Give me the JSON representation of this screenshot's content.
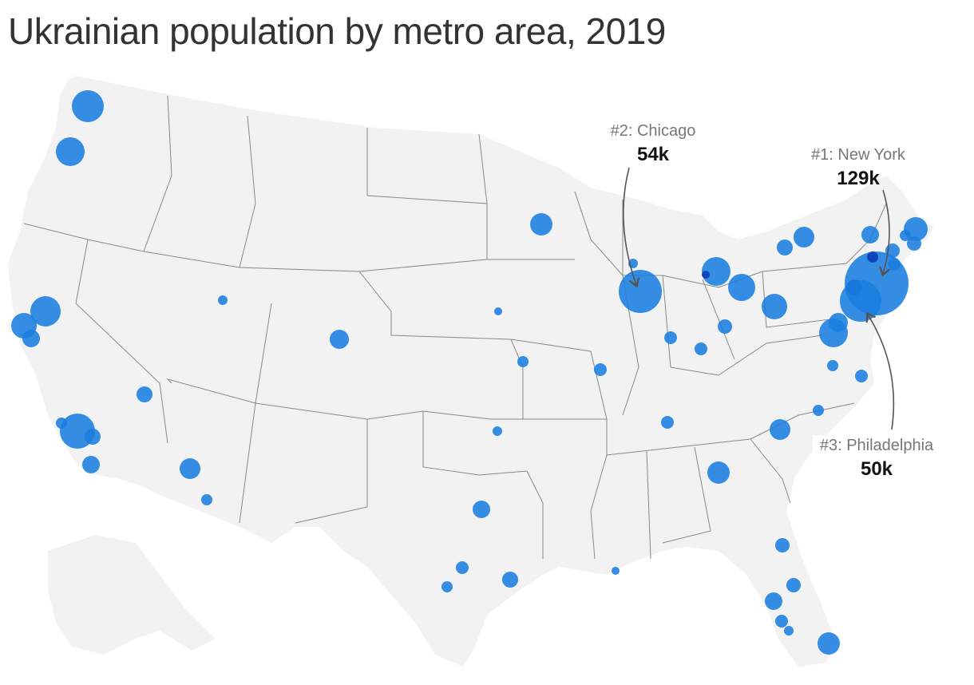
{
  "title": "Ukrainian population by metro area, 2019",
  "colors": {
    "bubble": "#1a7ee0",
    "bubble_dark": "#0a3fb8",
    "land": "#f2f2f2",
    "border": "#8a8a8a",
    "arrow": "#555555"
  },
  "annotations": [
    {
      "id": "ny",
      "label": "#1: New York",
      "value": "129k"
    },
    {
      "id": "chi",
      "label": "#2: Chicago",
      "value": "54k"
    },
    {
      "id": "phl",
      "label": "#3: Philadelphia",
      "value": "50k"
    }
  ]
}
